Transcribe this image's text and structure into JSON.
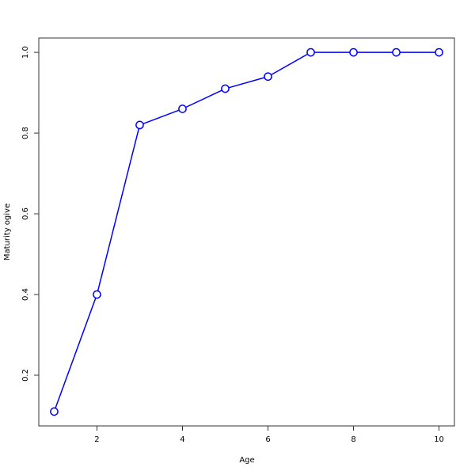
{
  "chart_data": {
    "type": "line",
    "title": "",
    "xlabel": "Age",
    "ylabel": "Maturity ogive",
    "x": [
      1,
      2,
      3,
      4,
      5,
      6,
      7,
      8,
      9,
      10
    ],
    "series": [
      {
        "values": [
          0.11,
          0.4,
          0.82,
          0.86,
          0.91,
          0.94,
          1.0,
          1.0,
          1.0,
          1.0
        ],
        "color": "#0000ff",
        "marker": "open-circle"
      }
    ],
    "xlim": [
      0.64,
      10.36
    ],
    "ylim": [
      0.0744,
      1.0356
    ],
    "xticks": [
      2,
      4,
      6,
      8,
      10
    ],
    "yticks": [
      "0.2",
      "0.4",
      "0.6",
      "0.8",
      "1.0"
    ],
    "grid": false
  }
}
